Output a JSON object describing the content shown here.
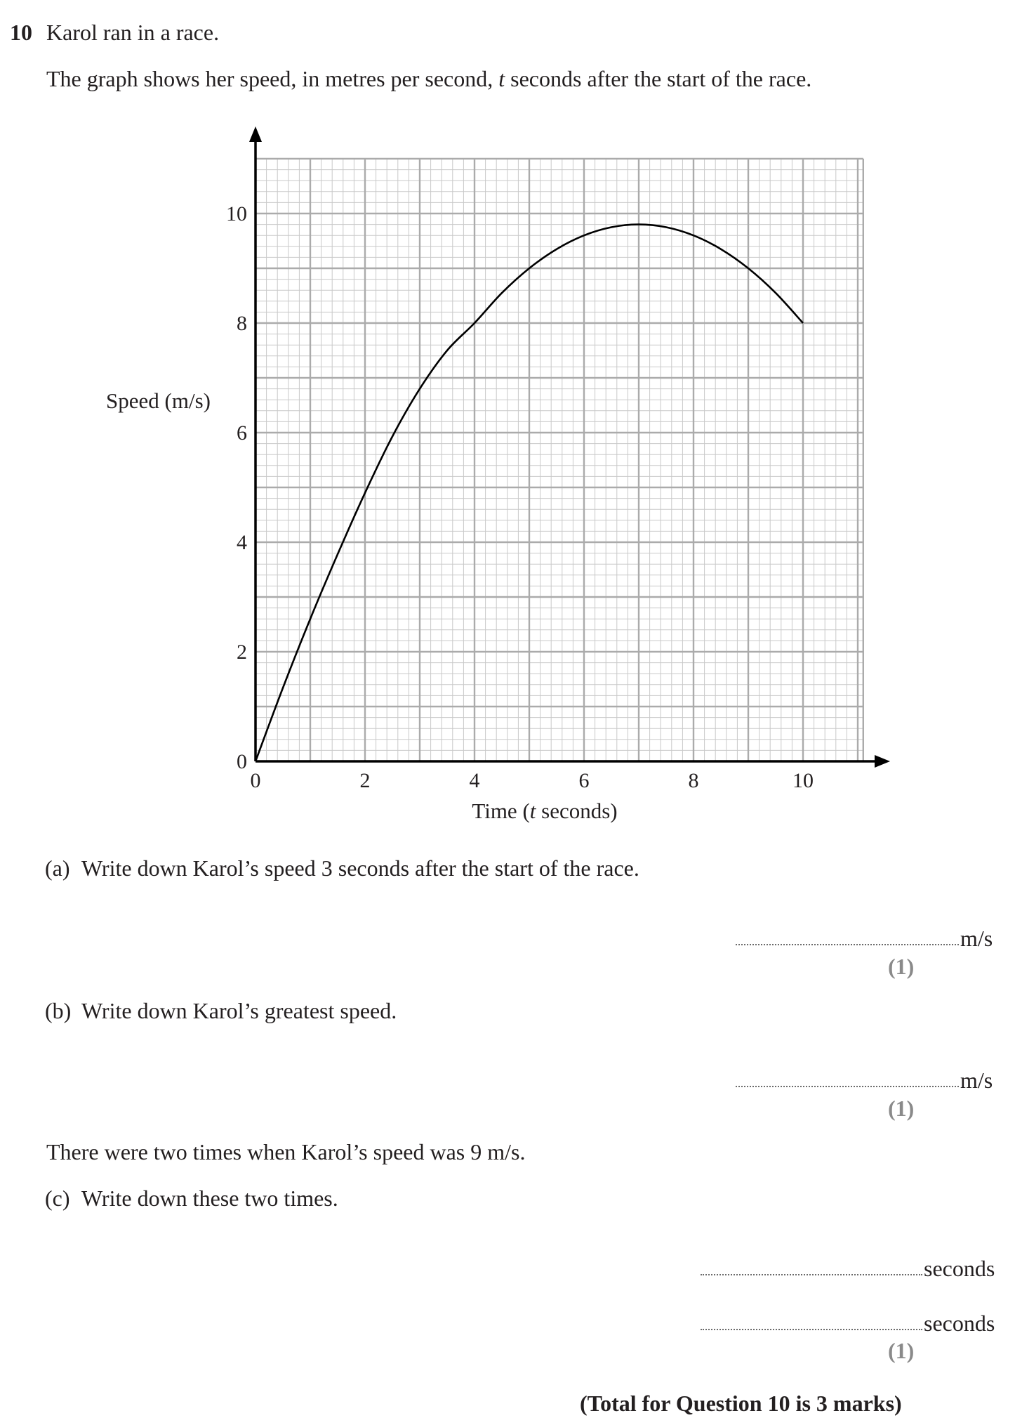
{
  "question": {
    "number": "10",
    "intro": "Karol ran in a race.",
    "description_before_t": "The graph shows her speed, in metres per second, ",
    "description_t": "t",
    "description_after_t": " seconds after the start of the race."
  },
  "parts": {
    "a": {
      "label": "(a)",
      "text": "Write down Karol’s speed 3 seconds after the start of the race.",
      "unit": "m/s",
      "mark": "(1)"
    },
    "b": {
      "label": "(b)",
      "text": "Write down Karol’s greatest speed.",
      "unit": "m/s",
      "mark": "(1)"
    },
    "c": {
      "stem": "There were two times when Karol’s speed was 9 m/s.",
      "label": "(c)",
      "text": "Write down these two times.",
      "unit1": "seconds",
      "unit2": "seconds",
      "mark": "(1)"
    }
  },
  "total": "(Total for Question 10 is 3 marks)",
  "chart_data": {
    "type": "line",
    "xlabel_prefix": "Time (",
    "xlabel_var": "t",
    "xlabel_suffix": " seconds)",
    "ylabel": "Speed (m/s)",
    "xlim": [
      0,
      11.1
    ],
    "ylim": [
      0,
      11
    ],
    "x_ticks": [
      0,
      2,
      4,
      6,
      8,
      10
    ],
    "y_ticks": [
      0,
      2,
      4,
      6,
      8,
      10
    ],
    "x_tick_labels": [
      "0",
      "2",
      "4",
      "6",
      "8",
      "10"
    ],
    "y_tick_labels": [
      "0",
      "2",
      "4",
      "6",
      "8",
      "10"
    ],
    "grid": true,
    "series": [
      {
        "x": [
          0,
          0.5,
          1,
          1.5,
          2,
          2.5,
          3,
          3.5,
          4,
          4.5,
          5,
          5.5,
          6,
          6.5,
          7,
          7.5,
          8,
          8.5,
          9,
          9.5,
          10
        ],
        "values": [
          0,
          1.34,
          2.6,
          3.78,
          4.9,
          5.93,
          6.8,
          7.5,
          8.0,
          8.55,
          9.0,
          9.35,
          9.6,
          9.75,
          9.8,
          9.75,
          9.6,
          9.35,
          9.0,
          8.55,
          8.0
        ]
      }
    ]
  }
}
